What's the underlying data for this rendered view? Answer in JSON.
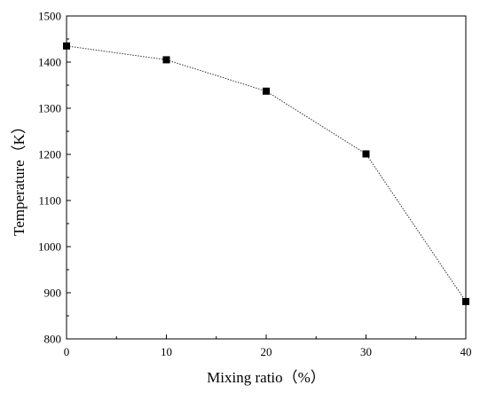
{
  "chart_data": {
    "type": "line",
    "xlabel": "Mixing ratio（%）",
    "ylabel": "Temperature（K）",
    "xlim": [
      0,
      40
    ],
    "ylim": [
      800,
      1500
    ],
    "x_ticks": [
      "0",
      "10",
      "20",
      "30",
      "40"
    ],
    "y_ticks": [
      "800",
      "900",
      "1000",
      "1100",
      "1200",
      "1300",
      "1400",
      "1500"
    ],
    "grid": false,
    "line_style": "dotted",
    "marker": "square",
    "colors": {
      "line": "#333333",
      "marker": "#000000",
      "axis": "#000000"
    },
    "series": [
      {
        "x": [
          0,
          10,
          20,
          30,
          40
        ],
        "y": [
          1435,
          1405,
          1337,
          1201,
          881
        ]
      }
    ]
  }
}
